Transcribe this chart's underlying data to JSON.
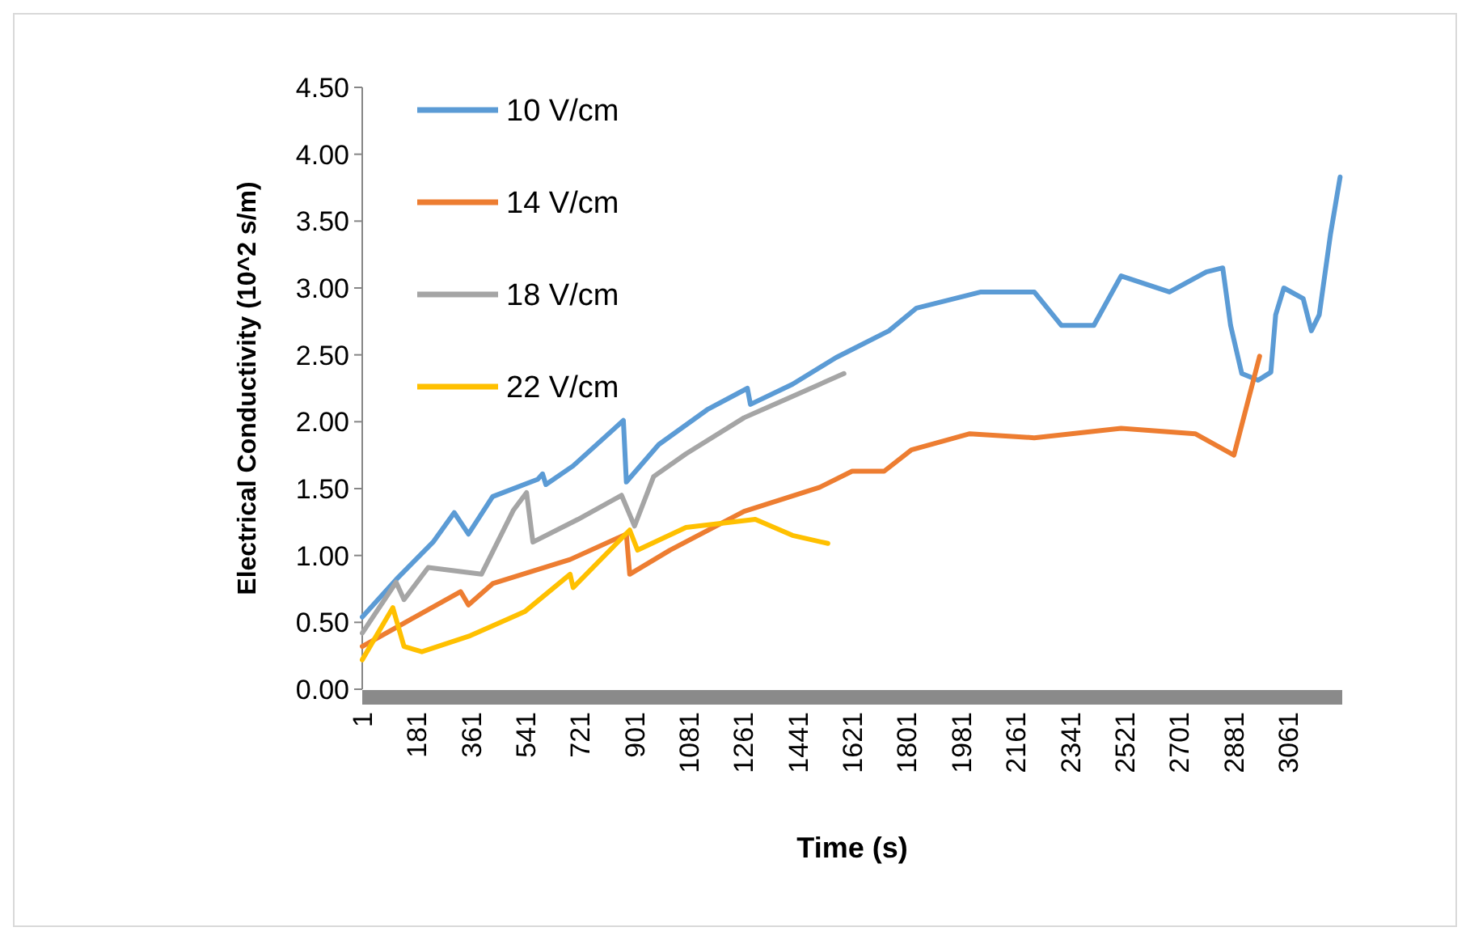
{
  "chart_data": {
    "type": "line",
    "xlabel": "Time (s)",
    "ylabel": "Electrical Conductivity (10^2 s/m)",
    "xlim": [
      1,
      3240
    ],
    "xticks": [
      1,
      181,
      361,
      541,
      721,
      901,
      1081,
      1261,
      1441,
      1621,
      1801,
      1981,
      2161,
      2341,
      2521,
      2701,
      2881,
      3061
    ],
    "ylim": [
      0,
      4.5
    ],
    "yticks": [
      {
        "value": 0,
        "label": "0.00"
      },
      {
        "value": 0.5,
        "label": "0.50"
      },
      {
        "value": 1,
        "label": "1.00"
      },
      {
        "value": 1.5,
        "label": "1.50"
      },
      {
        "value": 2,
        "label": "2.00"
      },
      {
        "value": 2.5,
        "label": "2.50"
      },
      {
        "value": 3,
        "label": "3.00"
      },
      {
        "value": 3.5,
        "label": "3.50"
      },
      {
        "value": 4,
        "label": "4.00"
      },
      {
        "value": 4.5,
        "label": "4.50"
      }
    ],
    "grid": false,
    "legend": "top left",
    "marker": "none",
    "line_style": "solid",
    "series": [
      {
        "name": "10 V/cm",
        "color": "#5b9bd5",
        "x": [
          1,
          113,
          235,
          305,
          352,
          432,
          581,
          597,
          608,
          698,
          864,
          874,
          981,
          1141,
          1274,
          1284,
          1423,
          1567,
          1620,
          1742,
          1833,
          2046,
          2222,
          2312,
          2419,
          2509,
          2669,
          2791,
          2845,
          2871,
          2908,
          2962,
          3004,
          3020,
          3047,
          3111,
          3138,
          3164,
          3201,
          3233
        ],
        "values": [
          0.54,
          0.82,
          1.1,
          1.32,
          1.16,
          1.44,
          1.57,
          1.61,
          1.53,
          1.67,
          2.01,
          1.55,
          1.83,
          2.09,
          2.25,
          2.13,
          2.28,
          2.48,
          2.54,
          2.68,
          2.85,
          2.97,
          2.97,
          2.72,
          2.72,
          3.09,
          2.97,
          3.12,
          3.15,
          2.72,
          2.36,
          2.31,
          2.37,
          2.8,
          3.0,
          2.92,
          2.68,
          2.8,
          3.4,
          3.83
        ]
      },
      {
        "name": "14 V/cm",
        "color": "#ed7d31",
        "x": [
          1,
          326,
          352,
          432,
          688,
          874,
          885,
          1018,
          1263,
          1513,
          1620,
          1726,
          1816,
          2009,
          2222,
          2509,
          2754,
          2882,
          2967
        ],
        "values": [
          0.32,
          0.73,
          0.63,
          0.79,
          0.97,
          1.16,
          0.86,
          1.04,
          1.33,
          1.51,
          1.63,
          1.63,
          1.79,
          1.91,
          1.88,
          1.95,
          1.91,
          1.75,
          2.49
        ]
      },
      {
        "name": "18 V/cm",
        "color": "#a5a5a5",
        "x": [
          1,
          113,
          139,
          219,
          395,
          501,
          544,
          565,
          714,
          858,
          901,
          964,
          1071,
          1263,
          1423,
          1593
        ],
        "values": [
          0.42,
          0.8,
          0.67,
          0.91,
          0.86,
          1.34,
          1.47,
          1.1,
          1.27,
          1.45,
          1.22,
          1.59,
          1.76,
          2.03,
          2.19,
          2.36
        ]
      },
      {
        "name": "22 V/cm",
        "color": "#ffc000",
        "x": [
          1,
          102,
          139,
          198,
          358,
          538,
          688,
          698,
          885,
          911,
          1071,
          1300,
          1423,
          1540
        ],
        "values": [
          0.22,
          0.61,
          0.32,
          0.28,
          0.4,
          0.58,
          0.86,
          0.76,
          1.19,
          1.04,
          1.21,
          1.27,
          1.15,
          1.09
        ]
      }
    ]
  }
}
